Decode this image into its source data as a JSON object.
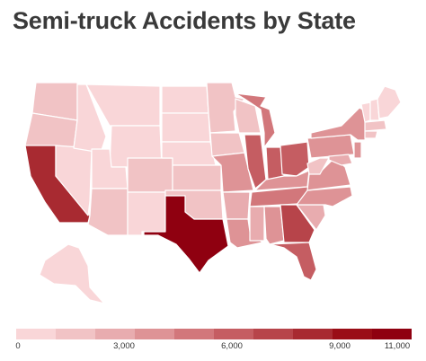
{
  "title": "Semi-truck Accidents by State",
  "colors": [
    "#f9d6d8",
    "#f1c3c5",
    "#e8acaf",
    "#de9396",
    "#d2777b",
    "#c55d62",
    "#b7444a",
    "#a82a31",
    "#9a0d16",
    "#8f0010"
  ],
  "legend": {
    "ticks": [
      "0",
      "3,000",
      "6,000",
      "9,000",
      "11,000"
    ]
  },
  "states": [
    {
      "id": "WA",
      "c": 1
    },
    {
      "id": "OR",
      "c": 1
    },
    {
      "id": "CA",
      "c": 7
    },
    {
      "id": "NV",
      "c": 0
    },
    {
      "id": "ID",
      "c": 0
    },
    {
      "id": "MT",
      "c": 0
    },
    {
      "id": "WY",
      "c": 0
    },
    {
      "id": "UT",
      "c": 0
    },
    {
      "id": "AZ",
      "c": 1
    },
    {
      "id": "CO",
      "c": 1
    },
    {
      "id": "NM",
      "c": 0
    },
    {
      "id": "ND",
      "c": 0
    },
    {
      "id": "SD",
      "c": 0
    },
    {
      "id": "NE",
      "c": 0
    },
    {
      "id": "KS",
      "c": 1
    },
    {
      "id": "OK",
      "c": 1
    },
    {
      "id": "TX",
      "c": 9
    },
    {
      "id": "MN",
      "c": 1
    },
    {
      "id": "IA",
      "c": 1
    },
    {
      "id": "MO",
      "c": 3
    },
    {
      "id": "AR",
      "c": 2
    },
    {
      "id": "LA",
      "c": 3
    },
    {
      "id": "WI",
      "c": 1
    },
    {
      "id": "IL",
      "c": 5
    },
    {
      "id": "MI",
      "c": 4
    },
    {
      "id": "IN",
      "c": 5
    },
    {
      "id": "OH",
      "c": 5
    },
    {
      "id": "KY",
      "c": 3
    },
    {
      "id": "TN",
      "c": 4
    },
    {
      "id": "MS",
      "c": 2
    },
    {
      "id": "AL",
      "c": 3
    },
    {
      "id": "GA",
      "c": 6
    },
    {
      "id": "FL",
      "c": 5
    },
    {
      "id": "SC",
      "c": 2
    },
    {
      "id": "NC",
      "c": 3
    },
    {
      "id": "VA",
      "c": 3
    },
    {
      "id": "WV",
      "c": 1
    },
    {
      "id": "PA",
      "c": 3
    },
    {
      "id": "NY",
      "c": 3
    },
    {
      "id": "VT",
      "c": 0
    },
    {
      "id": "NH",
      "c": 0
    },
    {
      "id": "ME",
      "c": 0
    },
    {
      "id": "MA",
      "c": 1
    },
    {
      "id": "CT",
      "c": 1
    },
    {
      "id": "NJ",
      "c": 3
    },
    {
      "id": "MD",
      "c": 2
    },
    {
      "id": "AK",
      "c": 0
    }
  ]
}
